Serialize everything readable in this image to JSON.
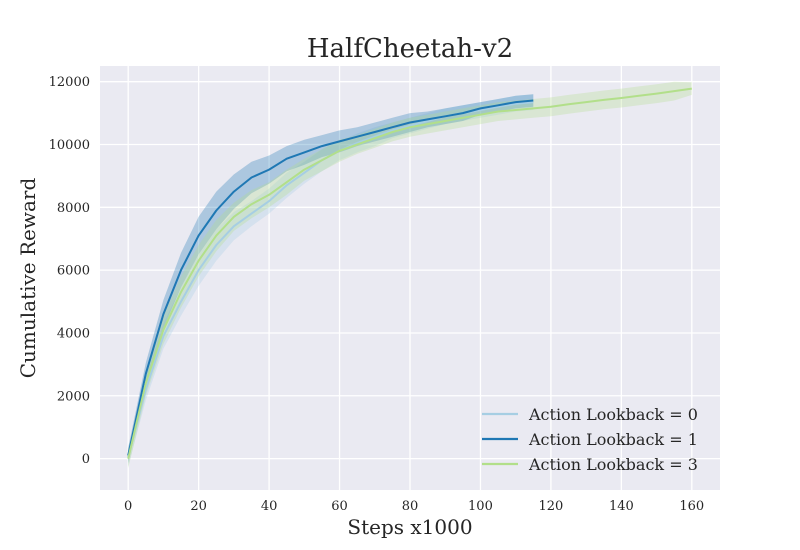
{
  "chart_data": {
    "type": "line",
    "title": "HalfCheetah-v2",
    "xlabel": "Steps x1000",
    "ylabel": "Cumulative Reward",
    "xlim": [
      -8,
      168
    ],
    "ylim": [
      -1000,
      12500
    ],
    "xticks": [
      0,
      20,
      40,
      60,
      80,
      100,
      120,
      140,
      160
    ],
    "yticks": [
      0,
      2000,
      4000,
      6000,
      8000,
      10000,
      12000
    ],
    "grid": true,
    "legend_position": "lower-right",
    "background_color": "#eaeaf2",
    "series": [
      {
        "name": "Action Lookback = 0",
        "color": "#a6cee3",
        "x": [
          0,
          5,
          10,
          15,
          20,
          25,
          30,
          35,
          40,
          45,
          50,
          55,
          60,
          65,
          70,
          75,
          80,
          85,
          90,
          95,
          100,
          105,
          110,
          115
        ],
        "y": [
          50,
          2200,
          3900,
          5000,
          6000,
          6800,
          7400,
          7800,
          8200,
          8700,
          9100,
          9500,
          9800,
          10050,
          10250,
          10450,
          10600,
          10750,
          10900,
          11000,
          11100,
          11200,
          11300,
          11350
        ],
        "band": [
          300,
          350,
          400,
          450,
          500,
          500,
          450,
          400,
          400,
          400,
          350,
          350,
          300,
          300,
          300,
          250,
          250,
          250,
          250,
          250,
          250,
          250,
          250,
          250
        ]
      },
      {
        "name": "Action Lookback = 1",
        "color": "#1f78b4",
        "x": [
          0,
          5,
          10,
          15,
          20,
          25,
          30,
          35,
          40,
          45,
          50,
          55,
          60,
          65,
          70,
          75,
          80,
          85,
          90,
          95,
          100,
          105,
          110,
          115
        ],
        "y": [
          100,
          2700,
          4600,
          6000,
          7100,
          7900,
          8500,
          8950,
          9200,
          9550,
          9750,
          9950,
          10100,
          10250,
          10400,
          10550,
          10700,
          10800,
          10900,
          11000,
          11150,
          11250,
          11350,
          11400
        ],
        "band": [
          250,
          350,
          450,
          550,
          600,
          600,
          550,
          500,
          450,
          400,
          400,
          350,
          350,
          300,
          300,
          300,
          300,
          250,
          250,
          250,
          200,
          200,
          200,
          200
        ]
      },
      {
        "name": "Action Lookback = 3",
        "color": "#b2df8a",
        "x": [
          0,
          5,
          10,
          15,
          20,
          25,
          30,
          35,
          40,
          45,
          50,
          55,
          60,
          65,
          70,
          75,
          80,
          85,
          90,
          95,
          100,
          105,
          110,
          115,
          120,
          125,
          130,
          135,
          140,
          145,
          150,
          155,
          160
        ],
        "y": [
          0,
          2400,
          4100,
          5300,
          6300,
          7100,
          7700,
          8100,
          8400,
          8800,
          9200,
          9500,
          9800,
          10000,
          10200,
          10400,
          10550,
          10650,
          10750,
          10850,
          10950,
          11050,
          11100,
          11150,
          11200,
          11280,
          11350,
          11420,
          11480,
          11550,
          11620,
          11700,
          11780
        ],
        "band": [
          300,
          400,
          450,
          500,
          500,
          500,
          450,
          450,
          400,
          400,
          350,
          350,
          350,
          300,
          300,
          300,
          300,
          300,
          300,
          300,
          300,
          300,
          300,
          300,
          300,
          300,
          300,
          300,
          300,
          300,
          300,
          300,
          200
        ]
      }
    ]
  }
}
